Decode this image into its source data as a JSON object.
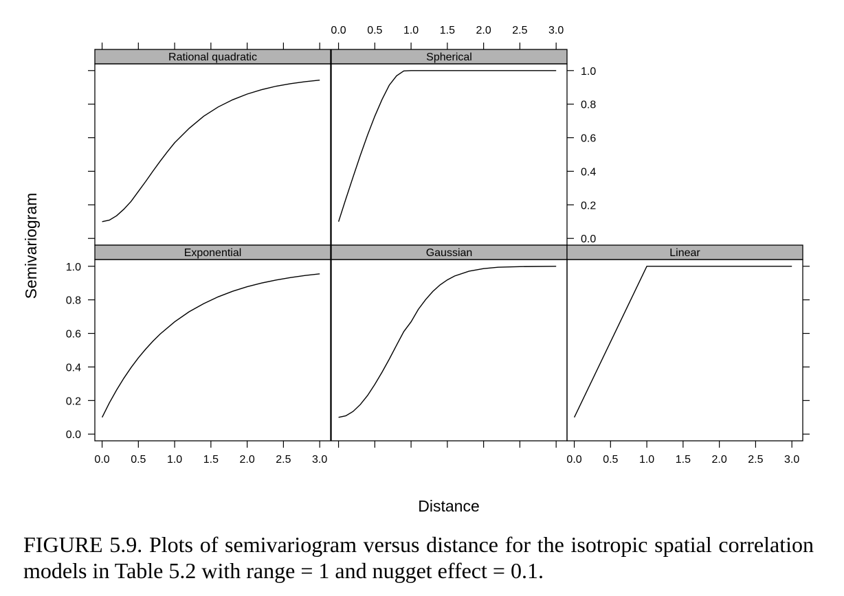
{
  "chart_data": {
    "type": "line",
    "layout": "trellis 2x3 with empty top-right",
    "xlabel": "Distance",
    "ylabel": "Semivariogram",
    "xlim": [
      -0.1,
      3.15
    ],
    "ylim": [
      -0.04,
      1.04
    ],
    "x_ticks": [
      "0.0",
      "0.5",
      "1.0",
      "1.5",
      "2.0",
      "2.5",
      "3.0"
    ],
    "y_ticks": [
      "0.0",
      "0.2",
      "0.4",
      "0.6",
      "0.8",
      "1.0"
    ],
    "strip_color": "#b3b3b3",
    "panels": [
      {
        "name": "Rational quadratic",
        "row": 0,
        "col": 0,
        "x": [
          0.0,
          0.1,
          0.2,
          0.3,
          0.4,
          0.5,
          0.6,
          0.7,
          0.8,
          0.9,
          1.0,
          1.2,
          1.4,
          1.6,
          1.8,
          2.0,
          2.2,
          2.4,
          2.6,
          2.8,
          3.0
        ],
        "y": [
          0.1,
          0.109,
          0.135,
          0.174,
          0.221,
          0.28,
          0.339,
          0.4,
          0.46,
          0.516,
          0.57,
          0.656,
          0.728,
          0.783,
          0.826,
          0.86,
          0.886,
          0.907,
          0.922,
          0.934,
          0.943
        ]
      },
      {
        "name": "Spherical",
        "row": 0,
        "col": 1,
        "x": [
          0.0,
          0.1,
          0.2,
          0.3,
          0.4,
          0.5,
          0.6,
          0.7,
          0.8,
          0.9,
          1.0,
          3.0
        ],
        "y": [
          0.1,
          0.234,
          0.366,
          0.494,
          0.616,
          0.728,
          0.828,
          0.913,
          0.969,
          0.998,
          1.0,
          1.0
        ]
      },
      {
        "name": "Exponential",
        "row": 1,
        "col": 0,
        "x": [
          0.0,
          0.1,
          0.2,
          0.3,
          0.4,
          0.5,
          0.6,
          0.7,
          0.8,
          1.0,
          1.2,
          1.4,
          1.6,
          1.8,
          2.0,
          2.2,
          2.4,
          2.6,
          2.8,
          3.0
        ],
        "y": [
          0.1,
          0.186,
          0.263,
          0.333,
          0.397,
          0.454,
          0.506,
          0.553,
          0.596,
          0.669,
          0.729,
          0.777,
          0.818,
          0.851,
          0.878,
          0.9,
          0.918,
          0.933,
          0.945,
          0.955
        ]
      },
      {
        "name": "Gaussian",
        "row": 1,
        "col": 1,
        "x": [
          0.0,
          0.1,
          0.2,
          0.3,
          0.4,
          0.5,
          0.6,
          0.7,
          0.8,
          0.9,
          1.0,
          1.1,
          1.2,
          1.3,
          1.4,
          1.5,
          1.6,
          1.8,
          2.0,
          2.2,
          2.5,
          3.0
        ],
        "y": [
          0.1,
          0.109,
          0.135,
          0.176,
          0.23,
          0.296,
          0.369,
          0.447,
          0.53,
          0.611,
          0.669,
          0.743,
          0.801,
          0.85,
          0.889,
          0.919,
          0.942,
          0.971,
          0.986,
          0.994,
          0.998,
          1.0
        ]
      },
      {
        "name": "Linear",
        "row": 1,
        "col": 2,
        "x": [
          0.0,
          1.0,
          3.0
        ],
        "y": [
          0.1,
          1.0,
          1.0
        ]
      }
    ]
  },
  "caption": "FIGURE 5.9. Plots of semivariogram versus distance for the isotropic spatial correlation models in Table 5.2 with range = 1 and nugget effect = 0.1."
}
